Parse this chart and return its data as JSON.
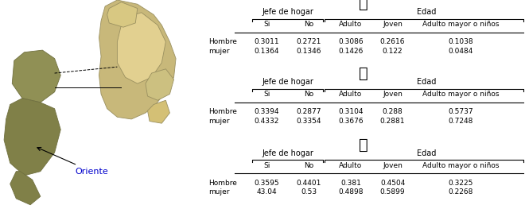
{
  "col_headers": [
    "Si",
    "No",
    "Adulto",
    "Joven",
    "Adulto mayor o niños"
  ],
  "group_headers": [
    "Jefe de hogar",
    "Edad"
  ],
  "row_labels": [
    "Hombre",
    "mujer"
  ],
  "table1_data": [
    [
      "0.3011",
      "0.2721",
      "0.3086",
      "0.2616",
      "0.1038"
    ],
    [
      "0.1364",
      "0.1346",
      "0.1426",
      "0.122",
      "0.0484"
    ]
  ],
  "table2_data": [
    [
      "0.3394",
      "0.2877",
      "0.3104",
      "0.288",
      "0.5737"
    ],
    [
      "0.4332",
      "0.3354",
      "0.3676",
      "0.2881",
      "0.7248"
    ]
  ],
  "table3_data": [
    [
      "0.3595",
      "0.4401",
      "0.381",
      "0.4504",
      "0.3225"
    ],
    [
      "43.04",
      "0.53",
      "0.4898",
      "0.5899",
      "0.2268"
    ]
  ],
  "oriente_label": "Oriente",
  "oriente_color": "#0000cc",
  "bg_color": "#ffffff",
  "line_color": "#000000",
  "table_fontsize": 6.5,
  "header_fontsize": 7.0,
  "icon_fontsize": 14
}
